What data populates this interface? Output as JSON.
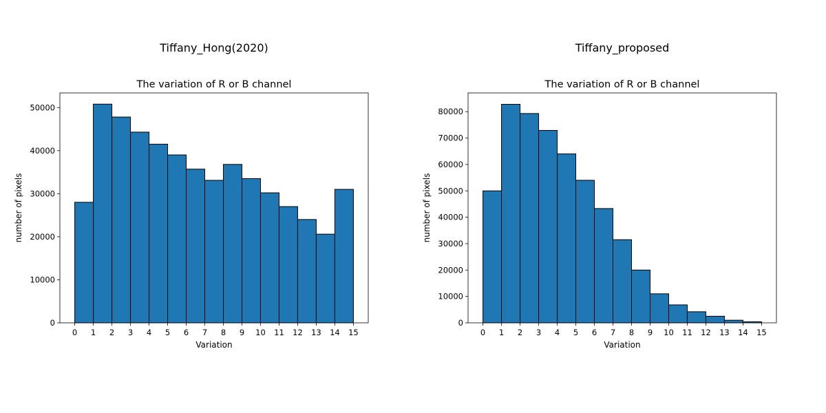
{
  "chart_data": [
    {
      "type": "bar",
      "suptitle": "Tiffany_Hong(2020)",
      "title": "The variation of R or B channel",
      "xlabel": "Variation",
      "ylabel": "number of pixels",
      "bin_edges": [
        0,
        1,
        2,
        3,
        4,
        5,
        6,
        7,
        8,
        9,
        10,
        11,
        12,
        13,
        14,
        15
      ],
      "values": [
        28000,
        50800,
        47800,
        44300,
        41500,
        39000,
        35700,
        33100,
        36800,
        33500,
        30200,
        27000,
        24000,
        20600,
        31000
      ],
      "xticks": [
        "0",
        "1",
        "2",
        "3",
        "4",
        "5",
        "6",
        "7",
        "8",
        "9",
        "10",
        "11",
        "12",
        "13",
        "14",
        "15"
      ],
      "yticks": [
        "0",
        "10000",
        "20000",
        "30000",
        "40000",
        "50000"
      ],
      "ylim": [
        0,
        53400
      ],
      "xlim": [
        -0.8,
        15.8
      ],
      "bar_color": "#1f77b4",
      "edge_color": "#000000"
    },
    {
      "type": "bar",
      "suptitle": "Tiffany_proposed",
      "title": "The variation of R or B channel",
      "xlabel": "Variation",
      "ylabel": "number of pixels",
      "bin_edges": [
        0,
        1,
        2,
        3,
        4,
        5,
        6,
        7,
        8,
        9,
        10,
        11,
        12,
        13,
        14,
        15
      ],
      "values": [
        50000,
        82800,
        79300,
        72900,
        64000,
        54000,
        43300,
        31500,
        20000,
        11000,
        6800,
        4200,
        2500,
        1000,
        400
      ],
      "xticks": [
        "0",
        "1",
        "2",
        "3",
        "4",
        "5",
        "6",
        "7",
        "8",
        "9",
        "10",
        "11",
        "12",
        "13",
        "14",
        "15"
      ],
      "yticks": [
        "0",
        "10000",
        "20000",
        "30000",
        "40000",
        "50000",
        "60000",
        "70000",
        "80000"
      ],
      "ylim": [
        0,
        87100
      ],
      "xlim": [
        -0.8,
        15.8
      ],
      "bar_color": "#1f77b4",
      "edge_color": "#000000"
    }
  ]
}
